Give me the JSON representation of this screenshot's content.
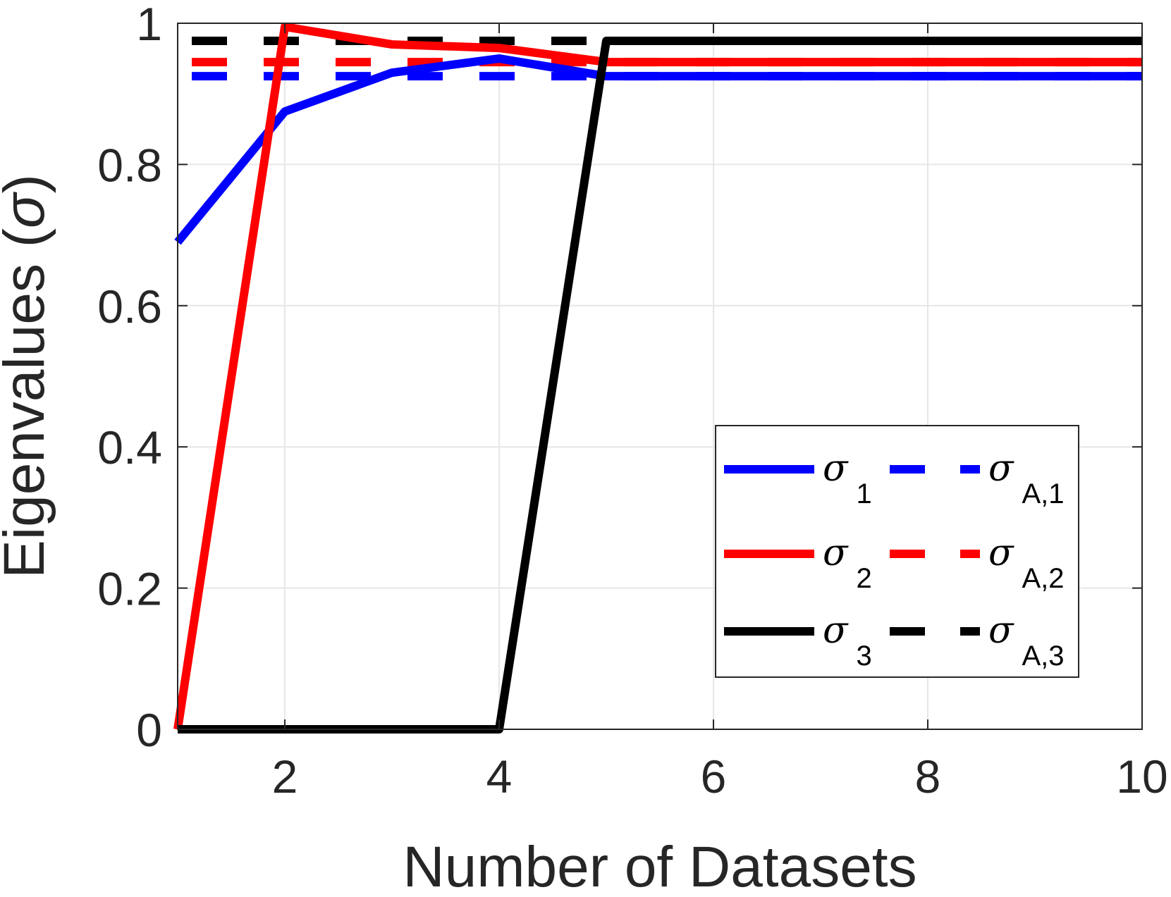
{
  "chart_data": {
    "type": "line",
    "title": "",
    "xlabel": "Number of Datasets",
    "ylabel": "Eigenvalues (σ)",
    "ylabel_parts": {
      "text": "Eigenvalues (",
      "symbol": "σ",
      "close": ")"
    },
    "xlim": [
      1,
      10
    ],
    "ylim": [
      0,
      1
    ],
    "xticks": [
      2,
      4,
      6,
      8,
      10
    ],
    "xtick_labels": [
      "2",
      "4",
      "6",
      "8",
      "10"
    ],
    "yticks": [
      0,
      0.2,
      0.4,
      0.6,
      0.8,
      1
    ],
    "ytick_labels": [
      "0",
      "0.2",
      "0.4",
      "0.6",
      "0.8",
      "1"
    ],
    "grid": true,
    "legend_position": "bottom-right",
    "x": [
      1,
      2,
      3,
      4,
      5,
      6,
      7,
      8,
      9,
      10
    ],
    "series": [
      {
        "name": "σ_1",
        "symbol": "σ",
        "sub": "1",
        "color": "#0000ff",
        "style": "solid",
        "values": [
          0.69,
          0.875,
          0.93,
          0.95,
          0.925,
          0.925,
          0.925,
          0.925,
          0.925,
          0.925
        ]
      },
      {
        "name": "σ_2",
        "symbol": "σ",
        "sub": "2",
        "color": "#ff0000",
        "style": "solid",
        "values": [
          0.0,
          0.995,
          0.97,
          0.965,
          0.945,
          0.945,
          0.945,
          0.945,
          0.945,
          0.945
        ]
      },
      {
        "name": "σ_3",
        "symbol": "σ",
        "sub": "3",
        "color": "#000000",
        "style": "solid",
        "values": [
          0.0,
          0.0,
          0.0,
          0.0,
          0.975,
          0.975,
          0.975,
          0.975,
          0.975,
          0.975
        ]
      },
      {
        "name": "σ_A,1",
        "symbol": "σ",
        "sub": "A,1",
        "color": "#0000ff",
        "style": "dashed",
        "values": [
          0.925,
          0.925,
          0.925,
          0.925,
          0.925,
          0.925,
          0.925,
          0.925,
          0.925,
          0.925
        ]
      },
      {
        "name": "σ_A,2",
        "symbol": "σ",
        "sub": "A,2",
        "color": "#ff0000",
        "style": "dashed",
        "values": [
          0.945,
          0.945,
          0.945,
          0.945,
          0.945,
          0.945,
          0.945,
          0.945,
          0.945,
          0.945
        ]
      },
      {
        "name": "σ_A,3",
        "symbol": "σ",
        "sub": "A,3",
        "color": "#000000",
        "style": "dashed",
        "values": [
          0.975,
          0.975,
          0.975,
          0.975,
          0.975,
          0.975,
          0.975,
          0.975,
          0.975,
          0.975
        ]
      }
    ]
  }
}
